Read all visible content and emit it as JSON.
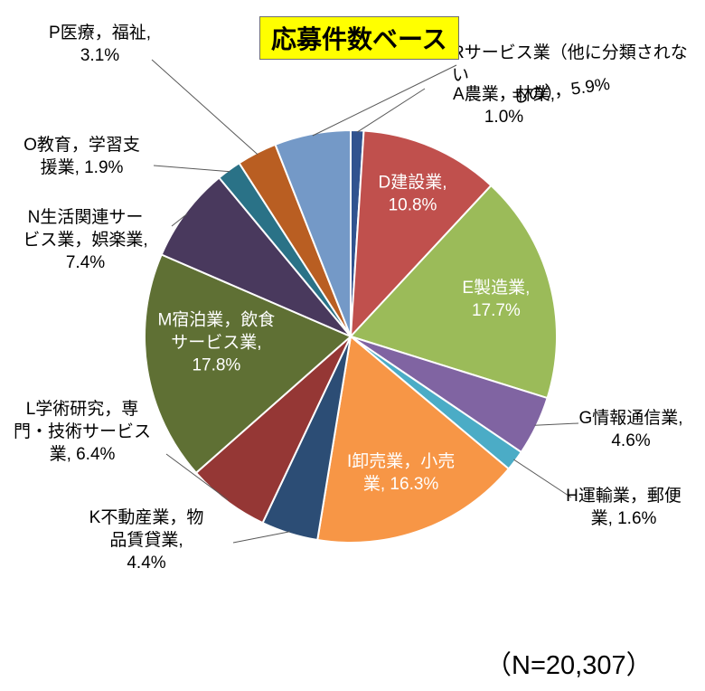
{
  "title": {
    "text": "応募件数ベース",
    "highlight_color": "#FFFF00"
  },
  "annotation": {
    "text": "（N=20,307）"
  },
  "chart_data": {
    "type": "pie",
    "title": "応募件数ベース",
    "sample_note": "（N=20,307）",
    "start_angle_deg": -90,
    "direction": "clockwise",
    "legend_position": "none",
    "slice_border_color": "#FFFFFF",
    "leader_line_color": "#595959",
    "slices": [
      {
        "key": "A",
        "label": "A農業，林業",
        "value": 1.0,
        "color": "#31538F",
        "label_pos": "outside",
        "lines": [
          "A農業，林業,",
          "1.0%"
        ]
      },
      {
        "key": "D",
        "label": "D建設業",
        "value": 10.8,
        "color": "#C0504D",
        "label_pos": "inside",
        "lines": [
          "D建設業,",
          "10.8%"
        ]
      },
      {
        "key": "E",
        "label": "E製造業",
        "value": 17.7,
        "color": "#9BBB59",
        "label_pos": "inside",
        "lines": [
          "E製造業,",
          "17.7%"
        ]
      },
      {
        "key": "G",
        "label": "G情報通信業",
        "value": 4.6,
        "color": "#8064A2",
        "label_pos": "outside",
        "lines": [
          "G情報通信業,",
          "4.6%"
        ]
      },
      {
        "key": "H",
        "label": "H運輸業，郵便業",
        "value": 1.6,
        "color": "#4BACC6",
        "label_pos": "outside",
        "lines": [
          "H運輸業，郵便",
          "業, 1.6%"
        ]
      },
      {
        "key": "I",
        "label": "I卸売業，小売業",
        "value": 16.3,
        "color": "#F79646",
        "label_pos": "inside",
        "lines": [
          "I卸売業，小売",
          "業, 16.3%"
        ]
      },
      {
        "key": "K",
        "label": "K不動産業，物品賃貸業",
        "value": 4.4,
        "color": "#2C4D75",
        "label_pos": "outside",
        "lines": [
          "K不動産業，物",
          "品賃貸業,",
          "4.4%"
        ]
      },
      {
        "key": "L",
        "label": "L学術研究，専門・技術サービス業",
        "value": 6.4,
        "color": "#953735",
        "label_pos": "outside",
        "lines": [
          "L学術研究，専",
          "門・技術サービス",
          "業, 6.4%"
        ]
      },
      {
        "key": "M",
        "label": "M宿泊業，飲食サービス業",
        "value": 17.8,
        "color": "#5F7034",
        "label_pos": "inside",
        "lines": [
          "M宿泊業，飲食",
          "サービス業,",
          "17.8%"
        ]
      },
      {
        "key": "N",
        "label": "N生活関連サービス業，娯楽業",
        "value": 7.4,
        "color": "#49395D",
        "label_pos": "outside",
        "lines": [
          "N生活関連サー",
          "ビス業，娯楽業,",
          "7.4%"
        ]
      },
      {
        "key": "O",
        "label": "O教育，学習支援業",
        "value": 1.9,
        "color": "#2A7287",
        "label_pos": "outside",
        "lines": [
          "O教育，学習支",
          "援業, 1.9%"
        ]
      },
      {
        "key": "P",
        "label": "P医療，福祉",
        "value": 3.1,
        "color": "#B95E22",
        "label_pos": "outside",
        "lines": [
          "P医療，福祉,",
          "3.1%"
        ]
      },
      {
        "key": "R",
        "label": "Rサービス業（他に分類されないもの）",
        "value": 5.9,
        "color": "#7499C7",
        "label_pos": "outside",
        "lines": [
          "Rサービス業（他に分類されない",
          "もの），5.9%"
        ]
      }
    ]
  }
}
